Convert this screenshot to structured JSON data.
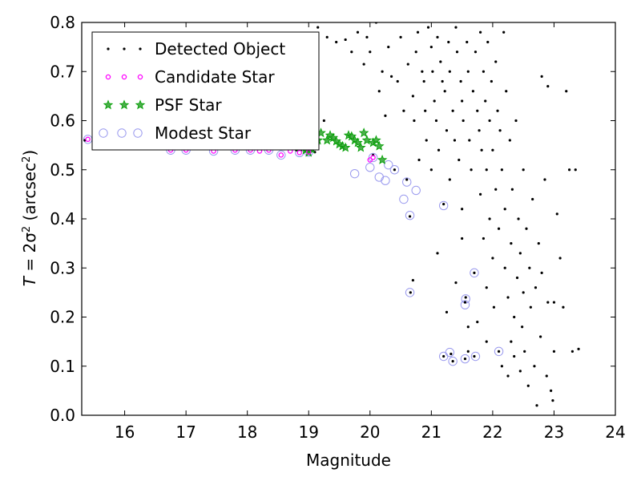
{
  "chart_data": {
    "type": "scatter",
    "xlabel": "Magnitude",
    "ylabel_parts": {
      "lhs": "T",
      "eq": " = 2σ",
      "sup": "2",
      "unit_open": " (arcsec",
      "unit_sup": "2",
      "unit_close": ")"
    },
    "xlim": [
      15.3,
      24
    ],
    "ylim": [
      0.0,
      0.8
    ],
    "xticks": [
      16,
      17,
      18,
      19,
      20,
      21,
      22,
      23,
      24
    ],
    "yticks": [
      0.0,
      0.1,
      0.2,
      0.3,
      0.4,
      0.5,
      0.6,
      0.7,
      0.8
    ],
    "xtick_labels": [
      "16",
      "17",
      "18",
      "19",
      "20",
      "21",
      "22",
      "23",
      "24"
    ],
    "ytick_labels": [
      "0.0",
      "0.1",
      "0.2",
      "0.3",
      "0.4",
      "0.5",
      "0.6",
      "0.7",
      "0.8"
    ],
    "grid": false,
    "legend_placement": "upper-left",
    "colors": {
      "detected": "#000000",
      "candidate": "#ff00ff",
      "psf_face": "#2ca02c",
      "psf_edge": "#00a000",
      "modest": "#9999ee"
    },
    "series": [
      {
        "name": "Detected Object",
        "marker": "dot",
        "points": [
          [
            15.35,
            0.56
          ],
          [
            15.55,
            0.558
          ],
          [
            15.75,
            0.556
          ],
          [
            16.0,
            0.555
          ],
          [
            16.3,
            0.553
          ],
          [
            16.6,
            0.552
          ],
          [
            16.9,
            0.55
          ],
          [
            17.2,
            0.549
          ],
          [
            17.5,
            0.548
          ],
          [
            17.8,
            0.547
          ],
          [
            18.0,
            0.545
          ],
          [
            18.2,
            0.544
          ],
          [
            18.4,
            0.543
          ],
          [
            18.6,
            0.542
          ],
          [
            18.8,
            0.54
          ],
          [
            19.0,
            0.538
          ],
          [
            19.1,
            0.536
          ],
          [
            19.15,
            0.79
          ],
          [
            19.25,
            0.6
          ],
          [
            19.3,
            0.77
          ],
          [
            19.45,
            0.76
          ],
          [
            19.6,
            0.765
          ],
          [
            19.7,
            0.74
          ],
          [
            19.8,
            0.78
          ],
          [
            19.9,
            0.715
          ],
          [
            19.95,
            0.77
          ],
          [
            20.0,
            0.74
          ],
          [
            20.05,
            0.53
          ],
          [
            20.1,
            0.8
          ],
          [
            20.15,
            0.66
          ],
          [
            20.2,
            0.7
          ],
          [
            20.25,
            0.61
          ],
          [
            20.3,
            0.75
          ],
          [
            20.35,
            0.69
          ],
          [
            20.4,
            0.5
          ],
          [
            20.45,
            0.68
          ],
          [
            20.5,
            0.77
          ],
          [
            20.55,
            0.62
          ],
          [
            20.6,
            0.48
          ],
          [
            20.62,
            0.715
          ],
          [
            20.65,
            0.405
          ],
          [
            20.66,
            0.25
          ],
          [
            20.7,
            0.275
          ],
          [
            20.7,
            0.65
          ],
          [
            20.72,
            0.6
          ],
          [
            20.75,
            0.74
          ],
          [
            20.78,
            0.78
          ],
          [
            20.8,
            0.52
          ],
          [
            20.85,
            0.7
          ],
          [
            20.88,
            0.68
          ],
          [
            20.9,
            0.62
          ],
          [
            20.92,
            0.56
          ],
          [
            20.95,
            0.79
          ],
          [
            21.0,
            0.75
          ],
          [
            21.0,
            0.5
          ],
          [
            21.02,
            0.7
          ],
          [
            21.05,
            0.64
          ],
          [
            21.08,
            0.6
          ],
          [
            21.1,
            0.77
          ],
          [
            21.12,
            0.54
          ],
          [
            21.15,
            0.72
          ],
          [
            21.18,
            0.68
          ],
          [
            21.2,
            0.43
          ],
          [
            21.2,
            0.12
          ],
          [
            21.22,
            0.66
          ],
          [
            21.25,
            0.58
          ],
          [
            21.28,
            0.76
          ],
          [
            21.3,
            0.7
          ],
          [
            21.3,
            0.48
          ],
          [
            21.32,
            0.125
          ],
          [
            21.35,
            0.62
          ],
          [
            21.35,
            0.11
          ],
          [
            21.38,
            0.56
          ],
          [
            21.4,
            0.79
          ],
          [
            21.42,
            0.74
          ],
          [
            21.45,
            0.52
          ],
          [
            21.48,
            0.68
          ],
          [
            21.5,
            0.64
          ],
          [
            21.5,
            0.42
          ],
          [
            21.52,
            0.6
          ],
          [
            21.55,
            0.23
          ],
          [
            21.55,
            0.115
          ],
          [
            21.56,
            0.24
          ],
          [
            21.58,
            0.76
          ],
          [
            21.6,
            0.7
          ],
          [
            21.6,
            0.13
          ],
          [
            21.62,
            0.56
          ],
          [
            21.65,
            0.5
          ],
          [
            21.68,
            0.66
          ],
          [
            21.7,
            0.29
          ],
          [
            21.7,
            0.12
          ],
          [
            21.72,
            0.74
          ],
          [
            21.75,
            0.62
          ],
          [
            21.75,
            0.19
          ],
          [
            21.78,
            0.58
          ],
          [
            21.8,
            0.45
          ],
          [
            21.8,
            0.78
          ],
          [
            21.82,
            0.54
          ],
          [
            21.85,
            0.7
          ],
          [
            21.85,
            0.36
          ],
          [
            21.88,
            0.64
          ],
          [
            21.9,
            0.5
          ],
          [
            21.9,
            0.26
          ],
          [
            21.92,
            0.76
          ],
          [
            21.95,
            0.6
          ],
          [
            21.95,
            0.4
          ],
          [
            21.98,
            0.68
          ],
          [
            22.0,
            0.54
          ],
          [
            22.0,
            0.32
          ],
          [
            22.02,
            0.22
          ],
          [
            22.05,
            0.72
          ],
          [
            22.05,
            0.46
          ],
          [
            22.08,
            0.62
          ],
          [
            22.1,
            0.13
          ],
          [
            22.1,
            0.38
          ],
          [
            22.12,
            0.58
          ],
          [
            22.15,
            0.5
          ],
          [
            22.15,
            0.1
          ],
          [
            22.18,
            0.78
          ],
          [
            22.2,
            0.42
          ],
          [
            22.2,
            0.3
          ],
          [
            22.22,
            0.66
          ],
          [
            22.25,
            0.24
          ],
          [
            22.25,
            0.08
          ],
          [
            22.28,
            0.56
          ],
          [
            22.3,
            0.35
          ],
          [
            22.3,
            0.15
          ],
          [
            22.32,
            0.46
          ],
          [
            22.35,
            0.2
          ],
          [
            22.35,
            0.12
          ],
          [
            22.38,
            0.6
          ],
          [
            22.4,
            0.28
          ],
          [
            22.42,
            0.4
          ],
          [
            22.45,
            0.09
          ],
          [
            22.45,
            0.33
          ],
          [
            22.48,
            0.18
          ],
          [
            22.5,
            0.5
          ],
          [
            22.5,
            0.25
          ],
          [
            22.52,
            0.13
          ],
          [
            22.55,
            0.38
          ],
          [
            22.58,
            0.06
          ],
          [
            22.6,
            0.3
          ],
          [
            22.62,
            0.22
          ],
          [
            22.65,
            0.44
          ],
          [
            22.68,
            0.1
          ],
          [
            22.7,
            0.26
          ],
          [
            22.72,
            0.02
          ],
          [
            22.75,
            0.35
          ],
          [
            22.78,
            0.16
          ],
          [
            22.8,
            0.29
          ],
          [
            22.85,
            0.48
          ],
          [
            22.88,
            0.08
          ],
          [
            22.9,
            0.23
          ],
          [
            22.95,
            0.05
          ],
          [
            22.98,
            0.03
          ],
          [
            23.0,
            0.23
          ],
          [
            23.0,
            0.13
          ],
          [
            23.05,
            0.41
          ],
          [
            23.1,
            0.32
          ],
          [
            23.15,
            0.22
          ],
          [
            23.2,
            0.66
          ],
          [
            23.25,
            0.5
          ],
          [
            23.3,
            0.13
          ],
          [
            23.35,
            0.5
          ],
          [
            23.4,
            0.135
          ],
          [
            22.8,
            0.69
          ],
          [
            22.9,
            0.67
          ],
          [
            21.1,
            0.33
          ],
          [
            21.4,
            0.27
          ],
          [
            21.6,
            0.18
          ],
          [
            21.25,
            0.21
          ],
          [
            21.9,
            0.15
          ],
          [
            21.5,
            0.36
          ]
        ]
      },
      {
        "name": "Candidate Star",
        "marker": "circle-small",
        "points": [
          [
            15.4,
            0.562
          ],
          [
            15.9,
            0.556
          ],
          [
            16.4,
            0.552
          ],
          [
            16.75,
            0.54
          ],
          [
            17.0,
            0.54
          ],
          [
            17.45,
            0.538
          ],
          [
            17.8,
            0.54
          ],
          [
            18.05,
            0.54
          ],
          [
            18.2,
            0.538
          ],
          [
            18.35,
            0.54
          ],
          [
            18.55,
            0.53
          ],
          [
            18.7,
            0.538
          ],
          [
            18.85,
            0.535
          ],
          [
            19.0,
            0.536
          ],
          [
            20.0,
            0.52
          ],
          [
            20.05,
            0.525
          ]
        ]
      },
      {
        "name": "PSF Star",
        "marker": "star",
        "points": [
          [
            18.75,
            0.548
          ],
          [
            18.85,
            0.545
          ],
          [
            18.95,
            0.54
          ],
          [
            19.0,
            0.535
          ],
          [
            19.05,
            0.542
          ],
          [
            19.1,
            0.548
          ],
          [
            19.15,
            0.56
          ],
          [
            19.2,
            0.575
          ],
          [
            19.3,
            0.56
          ],
          [
            19.35,
            0.57
          ],
          [
            19.4,
            0.565
          ],
          [
            19.45,
            0.558
          ],
          [
            19.5,
            0.552
          ],
          [
            19.55,
            0.548
          ],
          [
            19.6,
            0.545
          ],
          [
            19.65,
            0.57
          ],
          [
            19.7,
            0.568
          ],
          [
            19.75,
            0.56
          ],
          [
            19.8,
            0.555
          ],
          [
            19.85,
            0.545
          ],
          [
            19.9,
            0.575
          ],
          [
            19.95,
            0.56
          ],
          [
            20.05,
            0.555
          ],
          [
            20.1,
            0.56
          ],
          [
            20.15,
            0.548
          ],
          [
            20.2,
            0.52
          ]
        ]
      },
      {
        "name": "Modest Star",
        "marker": "circle-hollow",
        "points": [
          [
            15.4,
            0.562
          ],
          [
            15.9,
            0.556
          ],
          [
            16.4,
            0.552
          ],
          [
            16.75,
            0.54
          ],
          [
            17.0,
            0.54
          ],
          [
            17.45,
            0.538
          ],
          [
            17.8,
            0.54
          ],
          [
            18.05,
            0.54
          ],
          [
            18.35,
            0.54
          ],
          [
            18.55,
            0.53
          ],
          [
            18.85,
            0.535
          ],
          [
            19.0,
            0.536
          ],
          [
            19.75,
            0.492
          ],
          [
            20.0,
            0.505
          ],
          [
            20.05,
            0.525
          ],
          [
            20.15,
            0.485
          ],
          [
            20.25,
            0.478
          ],
          [
            20.3,
            0.51
          ],
          [
            20.4,
            0.5
          ],
          [
            20.55,
            0.44
          ],
          [
            20.6,
            0.475
          ],
          [
            20.65,
            0.407
          ],
          [
            20.65,
            0.25
          ],
          [
            20.75,
            0.458
          ],
          [
            21.2,
            0.427
          ],
          [
            21.2,
            0.12
          ],
          [
            21.35,
            0.11
          ],
          [
            21.3,
            0.128
          ],
          [
            21.55,
            0.225
          ],
          [
            21.56,
            0.237
          ],
          [
            21.55,
            0.115
          ],
          [
            21.7,
            0.29
          ],
          [
            21.72,
            0.12
          ],
          [
            22.1,
            0.13
          ]
        ]
      }
    ]
  }
}
